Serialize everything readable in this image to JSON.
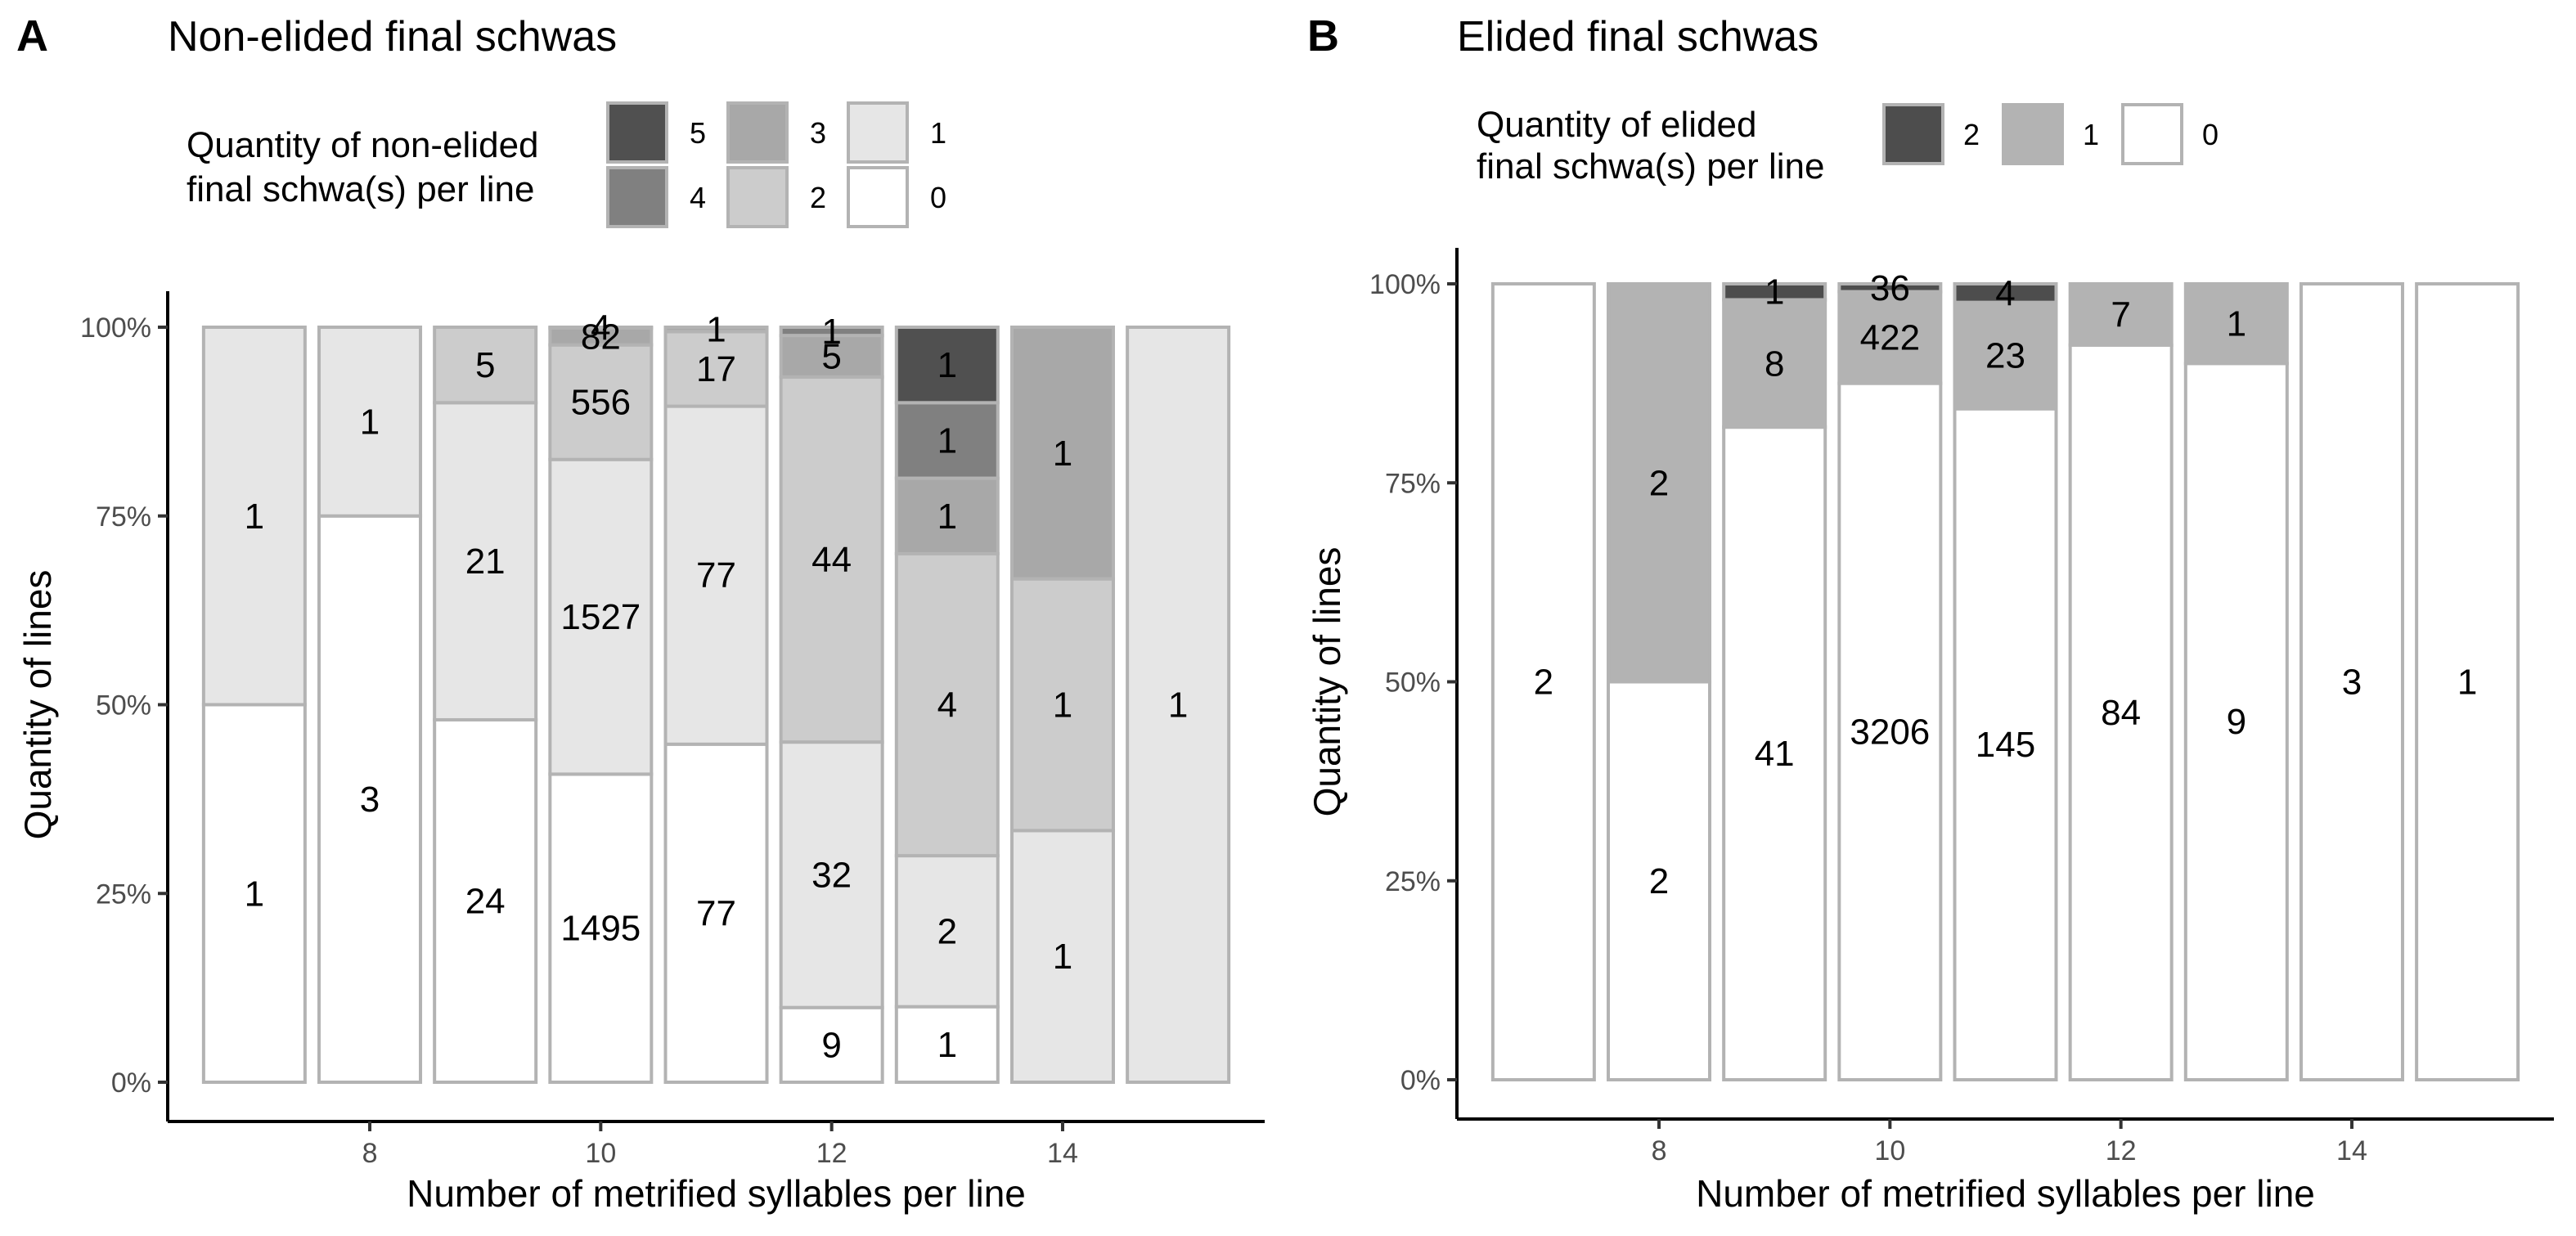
{
  "panels": [
    {
      "letter": "A",
      "title": "Non-elided final schwas",
      "legend_title_lines": [
        "Quantity of non-elided",
        "final schwa(s) per line"
      ],
      "chart_data": {
        "type": "bar",
        "stacked": "percent",
        "title": "Non-elided final schwas",
        "xlabel": "Number of metrified syllables per line",
        "ylabel": "Quantity of lines",
        "x": [
          7,
          8,
          9,
          10,
          11,
          12,
          13,
          14,
          15
        ],
        "x_ticks": [
          8,
          10,
          12,
          14
        ],
        "x_tick_labels": [
          "8",
          "10",
          "12",
          "14"
        ],
        "y_ticks": [
          0,
          0.25,
          0.5,
          0.75,
          1
        ],
        "y_tick_labels": [
          "0%",
          "25%",
          "50%",
          "75%",
          "100%"
        ],
        "ylim": [
          0,
          1
        ],
        "grid": false,
        "legend_position": "top",
        "series": [
          {
            "name": "0",
            "color": "#ffffff",
            "values": [
              1,
              3,
              24,
              1495,
              77,
              9,
              1,
              0,
              0
            ]
          },
          {
            "name": "1",
            "color": "#e6e6e6",
            "values": [
              1,
              1,
              21,
              1527,
              77,
              32,
              2,
              1,
              1
            ]
          },
          {
            "name": "2",
            "color": "#cccccc",
            "values": [
              0,
              0,
              5,
              556,
              17,
              44,
              4,
              1,
              0
            ]
          },
          {
            "name": "3",
            "color": "#a8a8a8",
            "values": [
              0,
              0,
              0,
              82,
              1,
              5,
              1,
              1,
              0
            ]
          },
          {
            "name": "4",
            "color": "#808080",
            "values": [
              0,
              0,
              0,
              4,
              0,
              1,
              1,
              0,
              0
            ]
          },
          {
            "name": "5",
            "color": "#505050",
            "values": [
              0,
              0,
              0,
              0,
              0,
              0,
              1,
              0,
              0
            ]
          }
        ]
      }
    },
    {
      "letter": "B",
      "title": "Elided final schwas",
      "legend_title_lines": [
        "Quantity of elided",
        "final schwa(s) per line"
      ],
      "chart_data": {
        "type": "bar",
        "stacked": "percent",
        "title": "Elided final schwas",
        "xlabel": "Number of metrified syllables per line",
        "ylabel": "Quantity of lines",
        "x": [
          7,
          8,
          9,
          10,
          11,
          12,
          13,
          14,
          15
        ],
        "x_ticks": [
          8,
          10,
          12,
          14
        ],
        "x_tick_labels": [
          "8",
          "10",
          "12",
          "14"
        ],
        "y_ticks": [
          0,
          0.25,
          0.5,
          0.75,
          1
        ],
        "y_tick_labels": [
          "0%",
          "25%",
          "50%",
          "75%",
          "100%"
        ],
        "ylim": [
          0,
          1
        ],
        "grid": false,
        "legend_position": "top",
        "series": [
          {
            "name": "0",
            "color": "#ffffff",
            "values": [
              2,
              2,
              41,
              3206,
              145,
              84,
              9,
              3,
              1
            ]
          },
          {
            "name": "1",
            "color": "#b3b3b3",
            "values": [
              0,
              2,
              8,
              422,
              23,
              7,
              1,
              0,
              0
            ]
          },
          {
            "name": "2",
            "color": "#4d4d4d",
            "values": [
              0,
              0,
              1,
              36,
              4,
              0,
              0,
              0,
              0
            ]
          }
        ]
      }
    }
  ]
}
